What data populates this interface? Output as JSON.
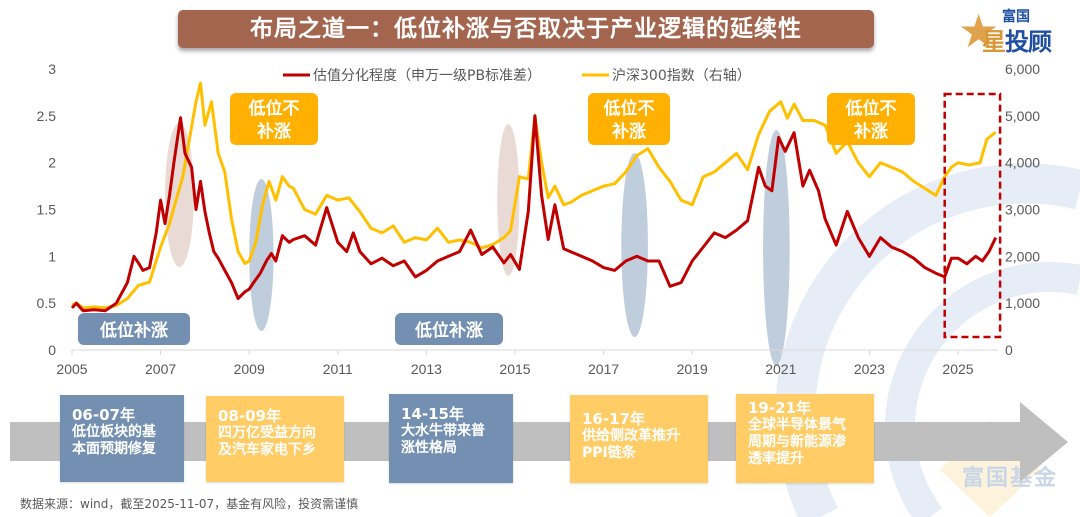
{
  "header": {
    "title": "布局之道一：低位补涨与否取决于产业逻辑的延续性",
    "logo_top": "富国",
    "logo_bottom_first": "星",
    "logo_bottom_rest": "投顾"
  },
  "chart_data": {
    "type": "line",
    "title": "布局之道一：低位补涨与否取决于产业逻辑的延续性",
    "xlabel": "",
    "ylabel": "",
    "x_range": [
      2005,
      2025.85
    ],
    "x_ticks": [
      "2005",
      "2007",
      "2009",
      "2011",
      "2013",
      "2015",
      "2017",
      "2019",
      "2021",
      "2023",
      "2025"
    ],
    "y_left": {
      "range": [
        0,
        3
      ],
      "ticks": [
        "0",
        "0.5",
        "1",
        "1.5",
        "2",
        "2.5",
        "3"
      ]
    },
    "y_right": {
      "range": [
        0,
        6000
      ],
      "ticks": [
        "0",
        "1,000",
        "2,000",
        "3,000",
        "4,000",
        "5,000",
        "6,000"
      ]
    },
    "grid": false,
    "legend_position": "top-center",
    "series": [
      {
        "name": "估值分化程度（申万一级PB标准差）",
        "axis": "left",
        "color": "#c00000",
        "x": [
          2005.0,
          2005.1,
          2005.25,
          2005.5,
          2005.75,
          2006.0,
          2006.25,
          2006.4,
          2006.5,
          2006.6,
          2006.75,
          2006.9,
          2007.0,
          2007.1,
          2007.2,
          2007.3,
          2007.45,
          2007.55,
          2007.7,
          2007.8,
          2007.9,
          2008.0,
          2008.1,
          2008.2,
          2008.3,
          2008.45,
          2008.6,
          2008.75,
          2008.9,
          2009.0,
          2009.1,
          2009.25,
          2009.4,
          2009.5,
          2009.6,
          2009.75,
          2009.9,
          2010.0,
          2010.25,
          2010.5,
          2010.75,
          2011.0,
          2011.2,
          2011.35,
          2011.5,
          2011.75,
          2012.0,
          2012.25,
          2012.5,
          2012.75,
          2013.0,
          2013.25,
          2013.5,
          2013.75,
          2014.0,
          2014.25,
          2014.5,
          2014.75,
          2014.9,
          2015.1,
          2015.3,
          2015.45,
          2015.6,
          2015.75,
          2015.9,
          2016.1,
          2016.25,
          2016.5,
          2016.75,
          2017.0,
          2017.25,
          2017.5,
          2017.75,
          2018.0,
          2018.25,
          2018.5,
          2018.75,
          2019.0,
          2019.25,
          2019.5,
          2019.75,
          2020.0,
          2020.25,
          2020.5,
          2020.65,
          2020.8,
          2020.95,
          2021.1,
          2021.3,
          2021.5,
          2021.65,
          2021.85,
          2022.0,
          2022.25,
          2022.5,
          2022.75,
          2023.0,
          2023.25,
          2023.5,
          2023.75,
          2024.0,
          2024.25,
          2024.5,
          2024.7,
          2024.85,
          2025.0,
          2025.2,
          2025.4,
          2025.55,
          2025.7,
          2025.85
        ],
        "values": [
          0.45,
          0.5,
          0.42,
          0.43,
          0.42,
          0.5,
          0.72,
          1.0,
          0.93,
          0.85,
          0.88,
          1.25,
          1.6,
          1.35,
          1.65,
          2.0,
          2.48,
          2.1,
          1.95,
          1.5,
          1.8,
          1.48,
          1.25,
          1.05,
          0.98,
          0.85,
          0.72,
          0.55,
          0.62,
          0.65,
          0.72,
          0.82,
          0.96,
          1.03,
          0.95,
          1.22,
          1.15,
          1.18,
          1.22,
          1.12,
          1.52,
          1.15,
          1.05,
          1.25,
          1.05,
          0.92,
          0.98,
          0.9,
          0.95,
          0.78,
          0.85,
          0.95,
          1.0,
          1.05,
          1.28,
          1.02,
          1.1,
          0.93,
          1.02,
          0.86,
          1.48,
          2.5,
          1.65,
          1.18,
          1.55,
          1.08,
          1.05,
          1.0,
          0.95,
          0.88,
          0.85,
          0.95,
          1.0,
          0.95,
          0.95,
          0.68,
          0.72,
          0.95,
          1.1,
          1.25,
          1.2,
          1.28,
          1.38,
          1.95,
          1.75,
          1.7,
          2.27,
          2.12,
          2.32,
          1.75,
          1.92,
          1.7,
          1.4,
          1.12,
          1.48,
          1.2,
          1.0,
          1.2,
          1.1,
          1.05,
          0.98,
          0.88,
          0.82,
          0.78,
          0.98,
          0.98,
          0.92,
          1.0,
          0.95,
          1.05,
          1.2
        ]
      },
      {
        "name": "沪深300指数（右轴）",
        "axis": "right",
        "color": "#ffc000",
        "x": [
          2005.0,
          2005.1,
          2005.25,
          2005.5,
          2005.75,
          2006.0,
          2006.25,
          2006.5,
          2006.75,
          2006.9,
          2007.0,
          2007.2,
          2007.35,
          2007.5,
          2007.65,
          2007.8,
          2007.9,
          2008.0,
          2008.15,
          2008.3,
          2008.45,
          2008.6,
          2008.75,
          2008.9,
          2009.0,
          2009.15,
          2009.3,
          2009.45,
          2009.6,
          2009.75,
          2009.9,
          2010.0,
          2010.25,
          2010.5,
          2010.75,
          2011.0,
          2011.25,
          2011.5,
          2011.75,
          2012.0,
          2012.25,
          2012.5,
          2012.75,
          2013.0,
          2013.25,
          2013.5,
          2013.75,
          2014.0,
          2014.25,
          2014.5,
          2014.75,
          2014.9,
          2015.1,
          2015.3,
          2015.45,
          2015.6,
          2015.75,
          2015.9,
          2016.1,
          2016.25,
          2016.5,
          2016.75,
          2017.0,
          2017.25,
          2017.5,
          2017.75,
          2018.0,
          2018.25,
          2018.5,
          2018.75,
          2019.0,
          2019.25,
          2019.5,
          2019.75,
          2020.0,
          2020.25,
          2020.5,
          2020.75,
          2021.0,
          2021.15,
          2021.3,
          2021.5,
          2021.75,
          2022.0,
          2022.25,
          2022.5,
          2022.75,
          2023.0,
          2023.25,
          2023.5,
          2023.75,
          2024.0,
          2024.25,
          2024.5,
          2024.7,
          2024.85,
          2025.0,
          2025.25,
          2025.5,
          2025.65,
          2025.85
        ],
        "values": [
          960,
          1000,
          900,
          920,
          900,
          950,
          1100,
          1380,
          1450,
          1900,
          2200,
          2700,
          3200,
          3700,
          4500,
          5300,
          5700,
          4800,
          5300,
          4200,
          3800,
          2800,
          2100,
          1850,
          1900,
          2300,
          3100,
          3600,
          3200,
          3700,
          3500,
          3450,
          3000,
          2900,
          3300,
          3200,
          3250,
          2950,
          2600,
          2500,
          2650,
          2300,
          2400,
          2350,
          2600,
          2300,
          2350,
          2300,
          2180,
          2250,
          2400,
          2550,
          3700,
          3650,
          5000,
          4000,
          3250,
          3500,
          3100,
          3150,
          3300,
          3400,
          3500,
          3550,
          3800,
          4150,
          4300,
          3900,
          3600,
          3200,
          3100,
          3700,
          3800,
          4000,
          4200,
          3850,
          4600,
          5100,
          5300,
          4950,
          5250,
          4900,
          4900,
          4800,
          4200,
          4450,
          4000,
          3700,
          4000,
          3900,
          3800,
          3600,
          3450,
          3300,
          3700,
          3900,
          4000,
          3950,
          4000,
          4500,
          4650
        ]
      }
    ],
    "annotations": [
      {
        "text": "低位补涨",
        "style": "blue-label",
        "near_year": 2006
      },
      {
        "text": "低位不补涨",
        "style": "orange-label",
        "near_year": 2009.5
      },
      {
        "text": "低位补涨",
        "style": "blue-label",
        "near_year": 2013.5
      },
      {
        "text": "低位不补涨",
        "style": "orange-label",
        "near_year": 2017.8
      },
      {
        "text": "低位不补涨",
        "style": "orange-label",
        "near_year": 2023.8
      },
      {
        "text": "",
        "style": "highlight-ellipse",
        "period": [
          2007.1,
          2007.75
        ],
        "color": "#e8d6d0"
      },
      {
        "text": "",
        "style": "highlight-ellipse",
        "period": [
          2009.0,
          2009.55
        ],
        "color": "#b8c8d8"
      },
      {
        "text": "",
        "style": "highlight-ellipse",
        "period": [
          2014.6,
          2015.1
        ],
        "color": "#e8d6d0"
      },
      {
        "text": "",
        "style": "highlight-ellipse",
        "period": [
          2017.4,
          2018.0
        ],
        "color": "#b8c8d8"
      },
      {
        "text": "",
        "style": "highlight-ellipse",
        "period": [
          2020.6,
          2021.2
        ],
        "color": "#b8c8d8"
      },
      {
        "text": "",
        "style": "dashed-box",
        "period": [
          2024.7,
          2025.95
        ],
        "color": "#c00000"
      }
    ]
  },
  "timeline": {
    "items": [
      {
        "period": "06-07年",
        "lines": [
          "低位板块的基",
          "本面预期修复"
        ],
        "style": "blue"
      },
      {
        "period": "08-09年",
        "lines": [
          "四万亿受益方向",
          "及汽车家电下乡"
        ],
        "style": "yellow"
      },
      {
        "period": "14-15年",
        "lines": [
          "大水牛带来普",
          "涨性格局"
        ],
        "style": "blue"
      },
      {
        "period": "16-17年",
        "lines": [
          "供给侧改革推升",
          "PPI链条"
        ],
        "style": "yellow"
      },
      {
        "period": "19-21年",
        "lines": [
          "全球半导体景气",
          "周期与新能源渗",
          "透率提升"
        ],
        "style": "yellow"
      }
    ]
  },
  "footer": {
    "source": "数据来源：wind，截至2025-11-07，基金有风险，投资需谨慎"
  },
  "watermark": {
    "text": "富国基金"
  },
  "colors": {
    "title_bg": "#a4654f",
    "red_series": "#c00000",
    "yellow_series": "#ffc000",
    "blue_label": "#7390b2",
    "orange_label": "#ffb000",
    "timeline_blue": "#7390b2",
    "timeline_yellow": "#ffcc66",
    "arrow_gray": "#bfbfbf"
  }
}
